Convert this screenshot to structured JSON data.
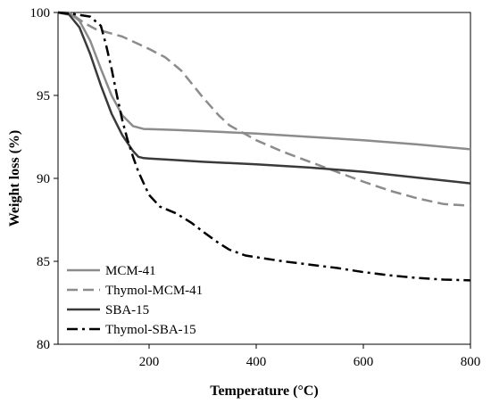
{
  "chart_data": {
    "type": "line",
    "xlabel": "Temperature (°C)",
    "ylabel": "Weight loss (%)",
    "xlim": [
      30,
      800
    ],
    "ylim": [
      80,
      100
    ],
    "xticks": [
      200,
      400,
      600,
      800
    ],
    "yticks": [
      80,
      85,
      90,
      95,
      100
    ],
    "grid": false,
    "legend_position": "bottom-left",
    "series": [
      {
        "name": "MCM-41",
        "color": "#8c8c8c",
        "dash": "solid",
        "x": [
          30,
          50,
          70,
          90,
          110,
          130,
          150,
          170,
          190,
          200,
          250,
          300,
          400,
          500,
          600,
          700,
          800
        ],
        "y": [
          100,
          100,
          99.5,
          98.3,
          96.6,
          95.0,
          93.8,
          93.15,
          92.98,
          92.97,
          92.92,
          92.85,
          92.7,
          92.5,
          92.3,
          92.05,
          91.75
        ]
      },
      {
        "name": "Thymol-MCM-41",
        "color": "#8c8c8c",
        "dash": "dashed",
        "x": [
          30,
          60,
          80,
          100,
          150,
          200,
          230,
          260,
          280,
          300,
          330,
          350,
          400,
          450,
          500,
          550,
          600,
          650,
          700,
          750,
          800
        ],
        "y": [
          100,
          99.8,
          99.35,
          99.0,
          98.55,
          97.8,
          97.3,
          96.5,
          95.7,
          94.9,
          93.8,
          93.2,
          92.3,
          91.6,
          91.0,
          90.4,
          89.8,
          89.25,
          88.8,
          88.45,
          88.35
        ]
      },
      {
        "name": "SBA-15",
        "color": "#3a3a3a",
        "dash": "solid",
        "x": [
          30,
          50,
          70,
          90,
          110,
          130,
          150,
          170,
          180,
          190,
          200,
          250,
          300,
          400,
          500,
          600,
          700,
          800
        ],
        "y": [
          100,
          99.9,
          99.1,
          97.5,
          95.6,
          93.9,
          92.6,
          91.65,
          91.3,
          91.22,
          91.2,
          91.1,
          91.0,
          90.85,
          90.65,
          90.4,
          90.05,
          89.7
        ]
      },
      {
        "name": "Thymol-SBA-15",
        "color": "#000000",
        "dash": "dashdot",
        "x": [
          30,
          60,
          90,
          110,
          120,
          130,
          140,
          150,
          160,
          170,
          180,
          190,
          200,
          220,
          250,
          280,
          300,
          330,
          350,
          380,
          400,
          450,
          500,
          550,
          600,
          650,
          700,
          750,
          800
        ],
        "y": [
          100,
          99.9,
          99.75,
          99.2,
          98.0,
          96.6,
          95.0,
          93.5,
          92.3,
          91.3,
          90.4,
          89.7,
          89.0,
          88.3,
          87.9,
          87.3,
          86.8,
          86.1,
          85.7,
          85.35,
          85.25,
          85.0,
          84.8,
          84.6,
          84.35,
          84.15,
          84.0,
          83.9,
          83.85
        ]
      }
    ]
  }
}
